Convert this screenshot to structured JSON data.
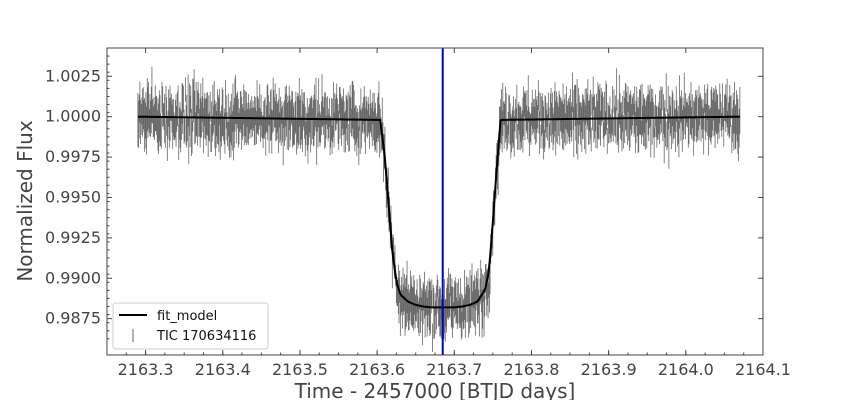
{
  "chart_data": {
    "type": "line",
    "xlabel": "Time - 2457000 [BTJD days]",
    "ylabel": "Normalized Flux",
    "xlim": [
      2163.25,
      2164.1
    ],
    "ylim": [
      0.98525,
      1.00425
    ],
    "x_ticks": [
      "2163.3",
      "2163.4",
      "2163.5",
      "2163.6",
      "2163.7",
      "2163.8",
      "2163.9",
      "2164.0",
      "2164.1"
    ],
    "y_ticks": [
      "1.0025",
      "1.0000",
      "0.9975",
      "0.9950",
      "0.9925",
      "0.9900",
      "0.9875"
    ],
    "legend_placement": "lower-left",
    "grid": false,
    "colors": {
      "model": "#000000",
      "data": "#666666",
      "marker": "#0000cc"
    },
    "vertical_marker_x": 2163.685,
    "series": [
      {
        "name": "fit_model",
        "style": "line",
        "x": [
          2163.29,
          2163.604,
          2163.61,
          2163.615,
          2163.62,
          2163.625,
          2163.63,
          2163.64,
          2163.65,
          2163.66,
          2163.67,
          2163.685,
          2163.7,
          2163.71,
          2163.72,
          2163.73,
          2163.74,
          2163.745,
          2163.75,
          2163.755,
          2163.76,
          2164.07
        ],
        "y": [
          1.0,
          0.9998,
          0.9975,
          0.9945,
          0.9915,
          0.9898,
          0.989,
          0.98855,
          0.98835,
          0.98825,
          0.9882,
          0.9882,
          0.9882,
          0.98825,
          0.98835,
          0.98855,
          0.9893,
          0.9905,
          0.9935,
          0.9968,
          0.9998,
          1.0
        ]
      },
      {
        "name": "TIC 170634116",
        "style": "errorbar",
        "x_range": [
          2163.29,
          2164.07
        ],
        "noise_sigma": 0.0012
      }
    ]
  }
}
